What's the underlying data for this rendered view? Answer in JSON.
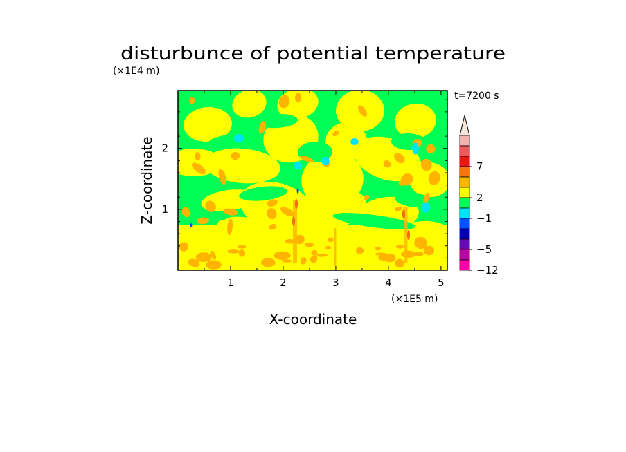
{
  "chart_data": {
    "type": "heatmap",
    "title": "disturbunce of potential temperature",
    "xlabel": "X-coordinate",
    "ylabel": "Z-coordinate",
    "x_unit": "(×1E5 m)",
    "y_unit": "(×1E4 m)",
    "time_label": "t=7200 s",
    "x_ticks": [
      1,
      2,
      3,
      4,
      5
    ],
    "y_ticks": [
      1,
      2
    ],
    "xlim": [
      0,
      5.12
    ],
    "ylim": [
      0,
      2.95
    ],
    "colorbar": {
      "tick_labels": [
        "7",
        "2",
        "-1",
        "-5",
        "-12"
      ],
      "levels": [
        {
          "color": "#f5b0b0"
        },
        {
          "color": "#ec5b5b"
        },
        {
          "color": "#e81a10"
        },
        {
          "color": "#f07a10"
        },
        {
          "color": "#ffb400"
        },
        {
          "color": "#ffff00"
        },
        {
          "color": "#00ff55"
        },
        {
          "color": "#00e2ff"
        },
        {
          "color": "#0050ff"
        },
        {
          "color": "#0000b0"
        },
        {
          "color": "#6a0aa8"
        },
        {
          "color": "#b00aa5"
        },
        {
          "color": "#ff00aa"
        }
      ],
      "extend_top_color": "#f5e6dc"
    },
    "field_colors": {
      "green": "#00ff55",
      "yellow": "#ffff00",
      "orange": "#ffb400",
      "cyan": "#00e2ff",
      "red": "#f06a10",
      "blue": "#0050ff"
    }
  }
}
